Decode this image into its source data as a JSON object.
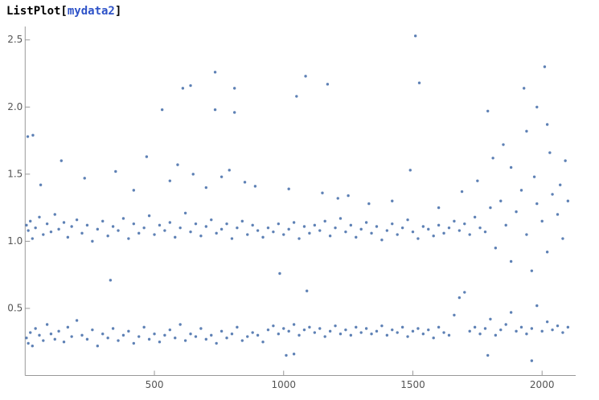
{
  "input": {
    "function": "ListPlot[",
    "argument": "mydata2",
    "close": "]"
  },
  "chart_data": {
    "type": "scatter",
    "color": "#5e81b5",
    "xlim": [
      0,
      2130
    ],
    "ylim": [
      0,
      2.6
    ],
    "xticks": [
      500,
      1000,
      1500,
      2000
    ],
    "yticks": [
      0.5,
      {
        "value": 1,
        "label": "1.0"
      },
      1.5,
      {
        "value": 2,
        "label": "2.0"
      },
      2.5
    ],
    "x": [
      5,
      12,
      20,
      28,
      40,
      55,
      70,
      85,
      100,
      115,
      130,
      150,
      165,
      180,
      200,
      220,
      240,
      260,
      280,
      300,
      320,
      340,
      360,
      380,
      400,
      420,
      440,
      460,
      480,
      500,
      520,
      540,
      560,
      580,
      600,
      620,
      640,
      660,
      680,
      700,
      720,
      740,
      760,
      780,
      800,
      820,
      840,
      860,
      880,
      900,
      920,
      940,
      960,
      980,
      1000,
      1020,
      1040,
      1060,
      1080,
      1100,
      1120,
      1140,
      1160,
      1180,
      1200,
      1220,
      1240,
      1260,
      1280,
      1300,
      1320,
      1340,
      1360,
      1380,
      1400,
      1420,
      1440,
      1460,
      1480,
      1500,
      1520,
      1540,
      1560,
      1580,
      1600,
      1620,
      1640,
      1660,
      1680,
      1700,
      1720,
      1740,
      1760,
      1780,
      1800,
      1820,
      1840,
      1860,
      1880,
      1900,
      1920,
      1940,
      1960,
      1980,
      2000,
      2020,
      2040,
      2060,
      2080,
      2100,
      5,
      12,
      20,
      28,
      40,
      55,
      70,
      85,
      100,
      115,
      130,
      150,
      165,
      180,
      200,
      220,
      240,
      260,
      280,
      300,
      320,
      340,
      360,
      380,
      400,
      420,
      440,
      460,
      480,
      500,
      520,
      540,
      560,
      580,
      600,
      620,
      640,
      660,
      680,
      700,
      720,
      740,
      760,
      780,
      800,
      820,
      840,
      860,
      880,
      900,
      920,
      940,
      960,
      980,
      1000,
      1020,
      1040,
      1060,
      1080,
      1100,
      1120,
      1140,
      1160,
      1180,
      1200,
      1220,
      1240,
      1260,
      1280,
      1300,
      1320,
      1340,
      1360,
      1380,
      1400,
      1420,
      1440,
      1460,
      1480,
      1500,
      1520,
      1540,
      1560,
      1580,
      1600,
      1620,
      1640,
      1660,
      1680,
      1700,
      1720,
      1740,
      1760,
      1780,
      1800,
      1820,
      1840,
      1860,
      1880,
      1900,
      1920,
      1940,
      1960,
      1980,
      2000,
      2020,
      2040,
      2060,
      2080,
      2100,
      60,
      140,
      230,
      350,
      420,
      470,
      560,
      590,
      650,
      700,
      760,
      790,
      850,
      890,
      1020,
      1150,
      1210,
      1250,
      1330,
      1420,
      1600,
      1690,
      1750,
      1810,
      1850,
      1880,
      1940,
      1970,
      2030,
      2070,
      2090,
      735,
      1510,
      2010,
      1085,
      640,
      610,
      810,
      1170,
      1525,
      530,
      735,
      810,
      1050,
      1930,
      1790,
      1980,
      2020,
      10,
      30,
      1490,
      330,
      985,
      1090,
      1010,
      1040,
      1790,
      1960
    ],
    "values": [
      0.28,
      0.24,
      0.32,
      0.22,
      0.35,
      0.3,
      0.26,
      0.38,
      0.31,
      0.27,
      0.33,
      0.25,
      0.36,
      0.29,
      0.41,
      0.3,
      0.27,
      0.34,
      0.22,
      0.31,
      0.28,
      0.35,
      0.26,
      0.3,
      0.33,
      0.24,
      0.29,
      0.36,
      0.27,
      0.31,
      0.25,
      0.3,
      0.34,
      0.28,
      0.38,
      0.26,
      0.31,
      0.29,
      0.35,
      0.27,
      0.3,
      0.24,
      0.33,
      0.28,
      0.31,
      0.36,
      0.26,
      0.29,
      0.32,
      0.3,
      0.25,
      0.34,
      0.37,
      0.31,
      0.35,
      0.33,
      0.38,
      0.3,
      0.34,
      0.36,
      0.32,
      0.35,
      0.29,
      0.33,
      0.37,
      0.31,
      0.34,
      0.3,
      0.36,
      0.32,
      0.35,
      0.31,
      0.33,
      0.37,
      0.3,
      0.34,
      0.32,
      0.36,
      0.29,
      0.33,
      0.35,
      0.31,
      0.34,
      0.28,
      0.36,
      0.32,
      0.3,
      0.45,
      0.58,
      0.62,
      0.33,
      0.36,
      0.31,
      0.35,
      0.42,
      0.3,
      0.34,
      0.38,
      0.47,
      0.33,
      0.36,
      0.31,
      0.35,
      0.52,
      0.33,
      0.4,
      0.34,
      0.37,
      0.32,
      0.36,
      1.12,
      1.08,
      1.15,
      1.02,
      1.1,
      1.18,
      1.05,
      1.13,
      1.07,
      1.2,
      1.09,
      1.14,
      1.03,
      1.11,
      1.16,
      1.06,
      1.12,
      1.0,
      1.09,
      1.15,
      1.04,
      1.11,
      1.08,
      1.17,
      1.02,
      1.13,
      1.06,
      1.1,
      1.19,
      1.05,
      1.12,
      1.08,
      1.14,
      1.03,
      1.1,
      1.21,
      1.07,
      1.13,
      1.04,
      1.11,
      1.16,
      1.06,
      1.09,
      1.13,
      1.02,
      1.1,
      1.15,
      1.05,
      1.12,
      1.08,
      1.03,
      1.1,
      1.07,
      1.13,
      1.05,
      1.09,
      1.14,
      1.02,
      1.11,
      1.06,
      1.12,
      1.08,
      1.15,
      1.04,
      1.1,
      1.17,
      1.07,
      1.12,
      1.03,
      1.09,
      1.14,
      1.06,
      1.11,
      1.01,
      1.08,
      1.13,
      1.05,
      1.1,
      1.16,
      1.07,
      1.02,
      1.11,
      1.09,
      1.04,
      1.12,
      1.06,
      1.1,
      1.15,
      1.08,
      1.13,
      1.05,
      1.18,
      1.1,
      1.07,
      1.25,
      0.95,
      1.3,
      1.12,
      0.85,
      1.22,
      1.38,
      1.05,
      0.78,
      1.28,
      1.15,
      0.92,
      1.35,
      1.2,
      1.02,
      1.3,
      1.42,
      1.6,
      1.47,
      1.52,
      1.38,
      1.63,
      1.45,
      1.57,
      1.5,
      1.4,
      1.48,
      1.53,
      1.44,
      1.41,
      1.39,
      1.36,
      1.32,
      1.34,
      1.28,
      1.3,
      1.25,
      1.37,
      1.45,
      1.62,
      1.72,
      1.55,
      1.82,
      1.48,
      1.66,
      1.42,
      1.6,
      2.26,
      2.53,
      2.3,
      2.23,
      2.16,
      2.14,
      2.14,
      2.17,
      2.18,
      1.98,
      1.98,
      1.96,
      2.08,
      2.14,
      1.97,
      2.0,
      1.87,
      1.78,
      1.79,
      1.53,
      0.71,
      0.76,
      0.63,
      0.15,
      0.16,
      0.15,
      0.11
    ]
  }
}
